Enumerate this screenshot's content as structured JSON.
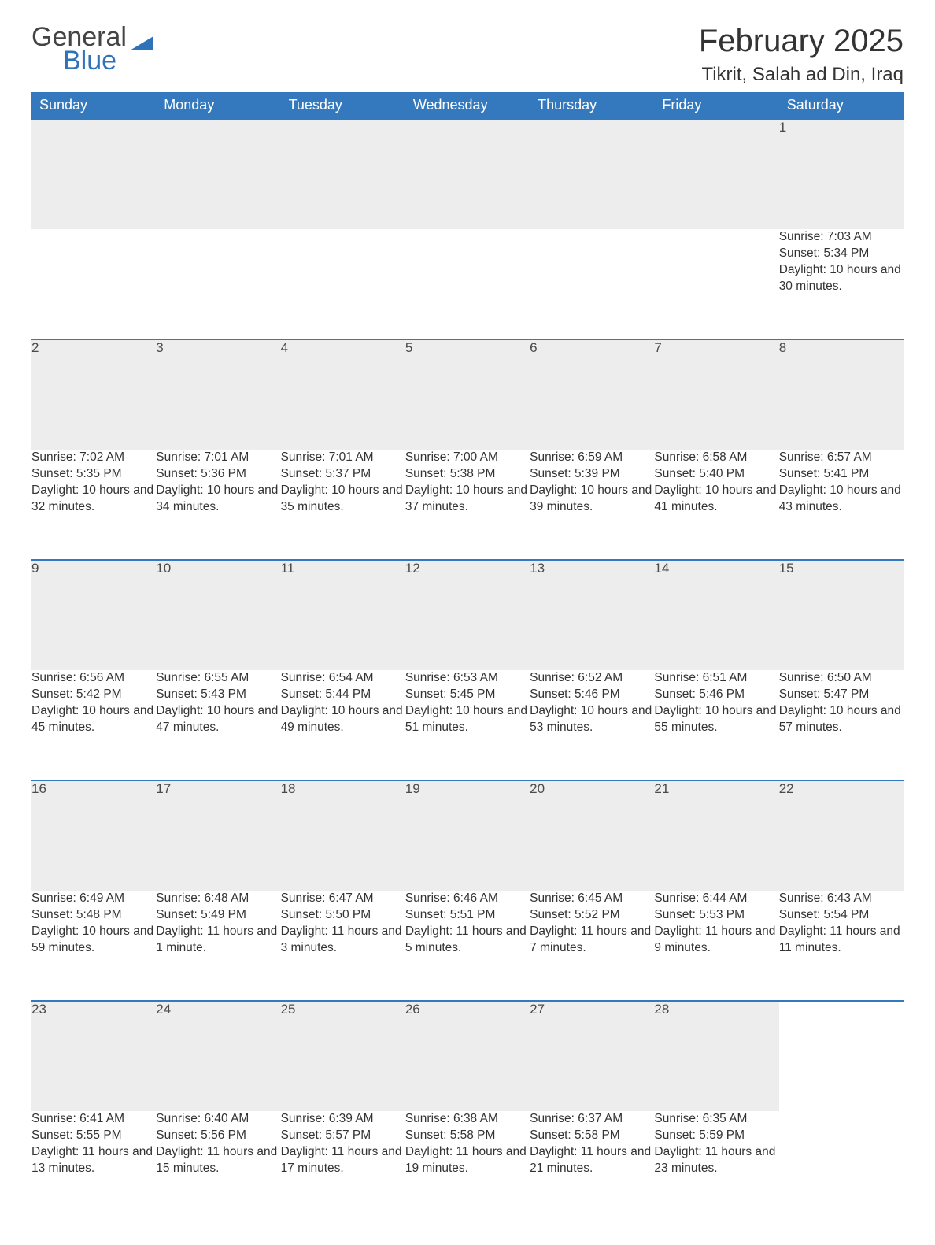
{
  "logo": {
    "general": "General",
    "blue": "Blue",
    "shape_color": "#2f72b8"
  },
  "title": "February 2025",
  "location": "Tikrit, Salah ad Din, Iraq",
  "style": {
    "header_bg": "#3478bd",
    "header_text": "#ffffff",
    "daynum_bg": "#ededed",
    "daynum_border": "#3478bd",
    "text_color": "#333333",
    "background": "#ffffff",
    "title_fontsize": 40,
    "location_fontsize": 24,
    "header_fontsize": 18,
    "body_fontsize": 15.5
  },
  "day_labels": [
    "Sunday",
    "Monday",
    "Tuesday",
    "Wednesday",
    "Thursday",
    "Friday",
    "Saturday"
  ],
  "weeks": [
    [
      null,
      null,
      null,
      null,
      null,
      null,
      {
        "n": "1",
        "sunrise": "7:03 AM",
        "sunset": "5:34 PM",
        "daylight": "10 hours and 30 minutes."
      }
    ],
    [
      {
        "n": "2",
        "sunrise": "7:02 AM",
        "sunset": "5:35 PM",
        "daylight": "10 hours and 32 minutes."
      },
      {
        "n": "3",
        "sunrise": "7:01 AM",
        "sunset": "5:36 PM",
        "daylight": "10 hours and 34 minutes."
      },
      {
        "n": "4",
        "sunrise": "7:01 AM",
        "sunset": "5:37 PM",
        "daylight": "10 hours and 35 minutes."
      },
      {
        "n": "5",
        "sunrise": "7:00 AM",
        "sunset": "5:38 PM",
        "daylight": "10 hours and 37 minutes."
      },
      {
        "n": "6",
        "sunrise": "6:59 AM",
        "sunset": "5:39 PM",
        "daylight": "10 hours and 39 minutes."
      },
      {
        "n": "7",
        "sunrise": "6:58 AM",
        "sunset": "5:40 PM",
        "daylight": "10 hours and 41 minutes."
      },
      {
        "n": "8",
        "sunrise": "6:57 AM",
        "sunset": "5:41 PM",
        "daylight": "10 hours and 43 minutes."
      }
    ],
    [
      {
        "n": "9",
        "sunrise": "6:56 AM",
        "sunset": "5:42 PM",
        "daylight": "10 hours and 45 minutes."
      },
      {
        "n": "10",
        "sunrise": "6:55 AM",
        "sunset": "5:43 PM",
        "daylight": "10 hours and 47 minutes."
      },
      {
        "n": "11",
        "sunrise": "6:54 AM",
        "sunset": "5:44 PM",
        "daylight": "10 hours and 49 minutes."
      },
      {
        "n": "12",
        "sunrise": "6:53 AM",
        "sunset": "5:45 PM",
        "daylight": "10 hours and 51 minutes."
      },
      {
        "n": "13",
        "sunrise": "6:52 AM",
        "sunset": "5:46 PM",
        "daylight": "10 hours and 53 minutes."
      },
      {
        "n": "14",
        "sunrise": "6:51 AM",
        "sunset": "5:46 PM",
        "daylight": "10 hours and 55 minutes."
      },
      {
        "n": "15",
        "sunrise": "6:50 AM",
        "sunset": "5:47 PM",
        "daylight": "10 hours and 57 minutes."
      }
    ],
    [
      {
        "n": "16",
        "sunrise": "6:49 AM",
        "sunset": "5:48 PM",
        "daylight": "10 hours and 59 minutes."
      },
      {
        "n": "17",
        "sunrise": "6:48 AM",
        "sunset": "5:49 PM",
        "daylight": "11 hours and 1 minute."
      },
      {
        "n": "18",
        "sunrise": "6:47 AM",
        "sunset": "5:50 PM",
        "daylight": "11 hours and 3 minutes."
      },
      {
        "n": "19",
        "sunrise": "6:46 AM",
        "sunset": "5:51 PM",
        "daylight": "11 hours and 5 minutes."
      },
      {
        "n": "20",
        "sunrise": "6:45 AM",
        "sunset": "5:52 PM",
        "daylight": "11 hours and 7 minutes."
      },
      {
        "n": "21",
        "sunrise": "6:44 AM",
        "sunset": "5:53 PM",
        "daylight": "11 hours and 9 minutes."
      },
      {
        "n": "22",
        "sunrise": "6:43 AM",
        "sunset": "5:54 PM",
        "daylight": "11 hours and 11 minutes."
      }
    ],
    [
      {
        "n": "23",
        "sunrise": "6:41 AM",
        "sunset": "5:55 PM",
        "daylight": "11 hours and 13 minutes."
      },
      {
        "n": "24",
        "sunrise": "6:40 AM",
        "sunset": "5:56 PM",
        "daylight": "11 hours and 15 minutes."
      },
      {
        "n": "25",
        "sunrise": "6:39 AM",
        "sunset": "5:57 PM",
        "daylight": "11 hours and 17 minutes."
      },
      {
        "n": "26",
        "sunrise": "6:38 AM",
        "sunset": "5:58 PM",
        "daylight": "11 hours and 19 minutes."
      },
      {
        "n": "27",
        "sunrise": "6:37 AM",
        "sunset": "5:58 PM",
        "daylight": "11 hours and 21 minutes."
      },
      {
        "n": "28",
        "sunrise": "6:35 AM",
        "sunset": "5:59 PM",
        "daylight": "11 hours and 23 minutes."
      },
      null
    ]
  ],
  "labels": {
    "sunrise": "Sunrise:",
    "sunset": "Sunset:",
    "daylight": "Daylight:"
  }
}
